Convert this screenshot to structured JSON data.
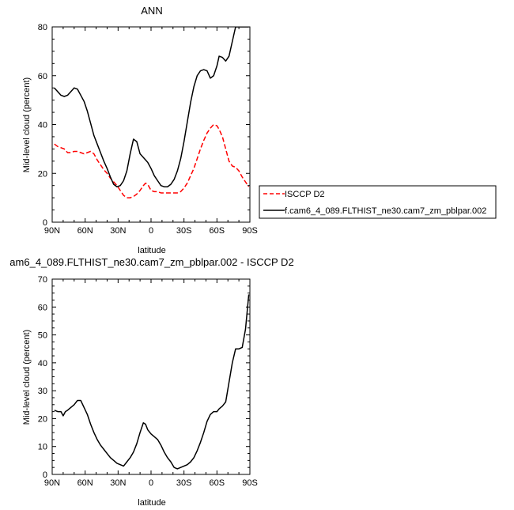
{
  "chart_data": [
    {
      "type": "line",
      "title": "ANN",
      "xlabel": "latitude",
      "ylabel": "Mid-level cloud (percent)",
      "xlim": [
        90,
        -90
      ],
      "ylim": [
        0,
        80
      ],
      "xticks": [
        90,
        60,
        30,
        0,
        -30,
        -60,
        -90
      ],
      "xtick_labels": [
        "90N",
        "60N",
        "30N",
        "0",
        "30S",
        "60S",
        "90S"
      ],
      "yticks": [
        0,
        20,
        40,
        60,
        80
      ],
      "legend_position": "right",
      "series": [
        {
          "name": "ISCCP D2",
          "color": "#ff0000",
          "style": "dashed",
          "x": [
            88,
            85,
            82,
            79,
            76,
            73,
            70,
            67,
            64,
            61,
            58,
            55,
            52,
            49,
            46,
            43,
            40,
            37,
            34,
            31,
            28,
            25,
            22,
            19,
            16,
            13,
            10,
            7,
            5,
            3,
            0,
            -3,
            -6,
            -9,
            -12,
            -15,
            -18,
            -21,
            -24,
            -27,
            -30,
            -33,
            -36,
            -39,
            -42,
            -45,
            -48,
            -51,
            -54,
            -57,
            -60,
            -62,
            -65,
            -68,
            -71,
            -74,
            -77,
            -80,
            -83,
            -86,
            -89
          ],
          "y": [
            32,
            31,
            30.5,
            30,
            28.5,
            28.5,
            29,
            29,
            28.5,
            28,
            28.5,
            29,
            28,
            25.5,
            23.5,
            21.5,
            20,
            18,
            16.5,
            15,
            13,
            11,
            10,
            10,
            10.5,
            11.5,
            13,
            15,
            16,
            15.5,
            13,
            12.5,
            12.5,
            12,
            12,
            12,
            12,
            12,
            12,
            12.5,
            14,
            16,
            19,
            22,
            26,
            30,
            33.5,
            36.5,
            38.5,
            40,
            39.5,
            38,
            35,
            30,
            25,
            23,
            22.5,
            21,
            18.5,
            16.5,
            14.5
          ]
        },
        {
          "name": "f.cam6_4_089.FLTHIST_ne30.cam7_zm_pblpar.002",
          "color": "#000000",
          "style": "solid",
          "x": [
            88,
            85,
            82,
            79,
            76,
            73,
            70,
            67,
            64,
            61,
            58,
            55,
            52,
            49,
            46,
            43,
            40,
            37,
            34,
            31,
            28,
            25,
            22,
            19,
            16,
            13,
            10,
            7,
            5,
            3,
            0,
            -3,
            -6,
            -9,
            -12,
            -15,
            -18,
            -21,
            -24,
            -27,
            -30,
            -33,
            -36,
            -39,
            -42,
            -45,
            -48,
            -51,
            -54,
            -57,
            -60,
            -62,
            -65,
            -68,
            -71,
            -74,
            -77,
            -80,
            -83,
            -86,
            -89
          ],
          "y": [
            55,
            53.5,
            52,
            51.5,
            52,
            53.5,
            55,
            54.5,
            52,
            49.5,
            45.5,
            40.5,
            35.5,
            32,
            28.5,
            25,
            22,
            18.5,
            15.5,
            14.5,
            15,
            17,
            21,
            28,
            34,
            33,
            28,
            26.5,
            25.5,
            24.5,
            22,
            19,
            17,
            15,
            14.5,
            14.5,
            15.5,
            17.5,
            21,
            26,
            33,
            41,
            49,
            55.5,
            60,
            62,
            62.5,
            62,
            59,
            60,
            64,
            68,
            67.5,
            66,
            68,
            74,
            80,
            80,
            80,
            80,
            80
          ]
        }
      ]
    },
    {
      "type": "line",
      "title": "am6_4_089.FLTHIST_ne30.cam7_zm_pblpar.002 - ISCCP D2",
      "xlabel": "latitude",
      "ylabel": "Mid-level cloud (percent)",
      "xlim": [
        90,
        -90
      ],
      "ylim": [
        0,
        70
      ],
      "xticks": [
        90,
        60,
        30,
        0,
        -30,
        -60,
        -90
      ],
      "xtick_labels": [
        "90N",
        "60N",
        "30N",
        "0",
        "30S",
        "60S",
        "90S"
      ],
      "yticks": [
        0,
        10,
        20,
        30,
        40,
        50,
        60,
        70
      ],
      "series": [
        {
          "color": "#000000",
          "style": "solid",
          "x": [
            88,
            85,
            82,
            80,
            78,
            76,
            73,
            70,
            67,
            64,
            61,
            58,
            55,
            52,
            49,
            46,
            43,
            40,
            37,
            34,
            31,
            28,
            25,
            22,
            19,
            16,
            13,
            10,
            7,
            5,
            3,
            0,
            -3,
            -6,
            -9,
            -12,
            -15,
            -18,
            -21,
            -24,
            -27,
            -30,
            -33,
            -36,
            -39,
            -42,
            -45,
            -48,
            -51,
            -54,
            -57,
            -60,
            -62,
            -65,
            -68,
            -71,
            -74,
            -77,
            -80,
            -83,
            -86,
            -89
          ],
          "y": [
            23,
            22.5,
            22.5,
            21,
            22.5,
            23,
            24,
            25,
            26.5,
            26.5,
            24,
            21.5,
            18,
            15,
            12.5,
            10.5,
            9,
            7.5,
            6,
            5,
            4,
            3.5,
            3,
            4.5,
            6,
            8,
            11,
            15,
            18.5,
            18,
            16,
            14.5,
            13.5,
            12.5,
            10.5,
            8,
            6,
            4.5,
            2.5,
            2,
            2.5,
            3,
            3.5,
            4.5,
            6,
            8.5,
            11.5,
            15,
            19,
            21.5,
            22.5,
            22.5,
            23.5,
            24.5,
            26,
            33,
            40,
            45,
            45,
            45.5,
            52,
            64.5
          ]
        }
      ]
    }
  ]
}
